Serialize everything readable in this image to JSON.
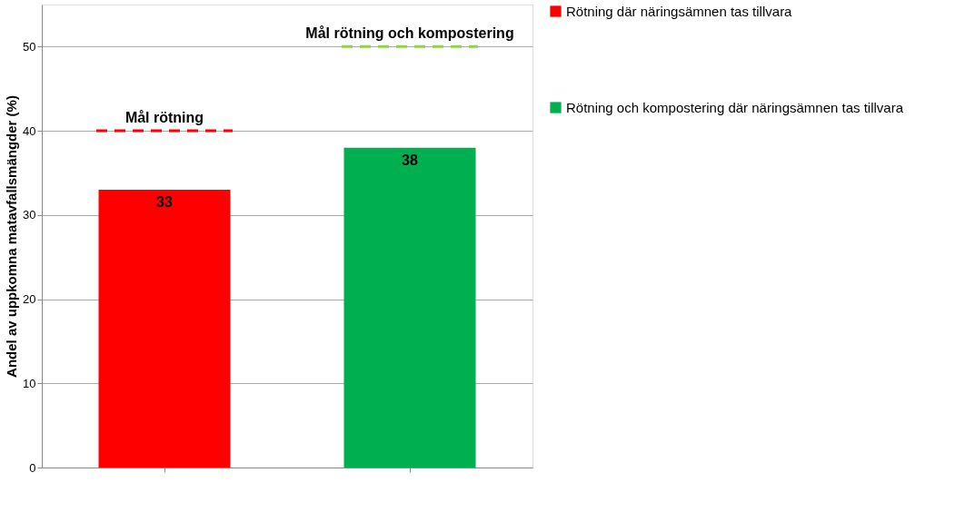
{
  "chart_data": {
    "type": "bar",
    "ylabel": "Andel av uppkomna matavfallsmängder (%)",
    "categories": [
      null,
      null
    ],
    "series": [
      {
        "name": "Rötning där näringsämnen tas tillvara",
        "color": "#ff0000",
        "values": [
          33,
          null
        ]
      },
      {
        "name": "Rötning och kompostering där näringsämnen tas tillvara",
        "color": "#00b050",
        "values": [
          null,
          38
        ]
      }
    ],
    "ylim": [
      0,
      55
    ],
    "yticks": [
      0,
      10,
      20,
      30,
      40,
      50
    ],
    "grid": "y",
    "legend": "right",
    "data_labels": true,
    "tick_labels": "y",
    "ref_lines": [
      {
        "axis": "y",
        "value": 40,
        "label": "Mål rötning",
        "color": "#ff0000",
        "line_style": "dashed"
      },
      {
        "axis": "y",
        "value": 50,
        "label": "Mål rötning och kompostering",
        "color": "#92d050",
        "line_style": "dashed"
      }
    ]
  }
}
